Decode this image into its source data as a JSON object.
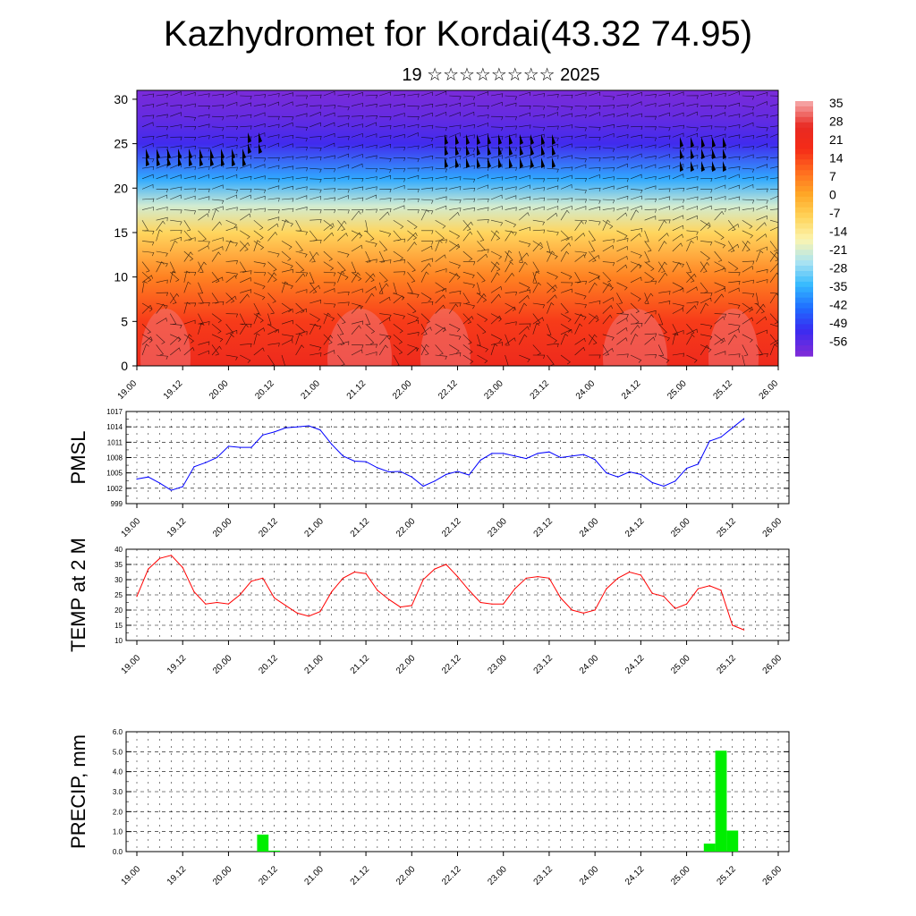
{
  "header": {
    "title": "Kazhydromet for Kordai(43.32 74.95)",
    "subtitle": "19 ☆☆☆☆☆☆☆☆ 2025"
  },
  "chart_data": [
    {
      "type": "heatmap",
      "name": "vertical-section",
      "title": "",
      "ylabel": "",
      "x_ticks": [
        "19.00",
        "19.12",
        "20.00",
        "20.12",
        "21.00",
        "21.12",
        "22.00",
        "22.12",
        "23.00",
        "23.12",
        "24.00",
        "24.12",
        "25.00",
        "25.12",
        "26.00"
      ],
      "y_ticks": [
        0,
        5,
        10,
        15,
        20,
        25,
        30
      ],
      "ylim": [
        0,
        31
      ],
      "colorbar": {
        "labels": [
          35,
          28,
          21,
          14,
          7,
          0,
          -7,
          -14,
          -21,
          -28,
          -35,
          -42,
          -49,
          -56
        ],
        "range": [
          -60,
          38
        ],
        "colors": [
          "#7b2bd9",
          "#3a2bf0",
          "#1f6dff",
          "#34b9ff",
          "#a9e3f2",
          "#fbf5b0",
          "#ffd45a",
          "#ffa726",
          "#ff6d1f",
          "#f52b17",
          "#e82a23",
          "#f5a0a0"
        ]
      },
      "temperature_profile": [
        {
          "h": 0,
          "t": 25
        },
        {
          "h": 5,
          "t": 18
        },
        {
          "h": 10,
          "t": 8
        },
        {
          "h": 15,
          "t": -7
        },
        {
          "h": 18,
          "t": -20
        },
        {
          "h": 21,
          "t": -35
        },
        {
          "h": 25,
          "t": -52
        },
        {
          "h": 28,
          "t": -57
        },
        {
          "h": 31,
          "t": -60
        }
      ]
    },
    {
      "type": "line",
      "name": "pmsl",
      "ylabel": "PMSL",
      "color": "#0000ff",
      "x_ticks": [
        "19.00",
        "19.12",
        "20.00",
        "20.12",
        "21.00",
        "21.12",
        "22.00",
        "22.12",
        "23.00",
        "23.12",
        "24.00",
        "24.12",
        "25.00",
        "25.12",
        "26.00"
      ],
      "y_ticks": [
        999,
        1002,
        1005,
        1008,
        1011,
        1014,
        1017
      ],
      "ylim": [
        999,
        1017
      ],
      "x_hours": [
        0,
        3,
        6,
        9,
        12,
        15,
        18,
        21,
        24,
        27,
        30,
        33,
        36,
        39,
        42,
        45,
        48,
        51,
        54,
        57,
        60,
        63,
        66,
        69,
        72,
        75,
        78,
        81,
        84,
        87,
        90,
        93,
        96,
        99,
        102,
        105,
        108,
        111,
        114,
        117,
        120,
        123,
        126,
        129,
        132,
        135,
        138,
        141,
        144,
        147,
        150,
        153,
        156,
        159
      ],
      "values": [
        1003.8,
        1004.2,
        1003.0,
        1001.6,
        1002.3,
        1006.2,
        1007.0,
        1008.0,
        1010.2,
        1010.0,
        1010.0,
        1012.4,
        1013.0,
        1013.8,
        1014.0,
        1014.2,
        1013.4,
        1010.6,
        1008.3,
        1007.3,
        1007.2,
        1006.0,
        1005.2,
        1005.3,
        1004.2,
        1002.4,
        1003.4,
        1004.7,
        1005.3,
        1004.6,
        1007.5,
        1008.8,
        1008.8,
        1008.3,
        1007.8,
        1008.8,
        1009.1,
        1008.0,
        1008.3,
        1008.6,
        1007.6,
        1005.0,
        1004.2,
        1005.2,
        1004.7,
        1003.1,
        1002.4,
        1003.4,
        1005.9,
        1006.7,
        1011.2,
        1012.0,
        1013.8,
        1015.6
      ]
    },
    {
      "type": "line",
      "name": "temp-2m",
      "ylabel": "TEMP at 2 M",
      "color": "#ff0000",
      "x_ticks": [
        "19.00",
        "19.12",
        "20.00",
        "20.12",
        "21.00",
        "21.12",
        "22.00",
        "22.12",
        "23.00",
        "23.12",
        "24.00",
        "24.12",
        "25.00",
        "25.12",
        "26.00"
      ],
      "y_ticks": [
        10,
        15,
        20,
        25,
        30,
        35,
        40
      ],
      "ylim": [
        10,
        40
      ],
      "x_hours": [
        0,
        3,
        6,
        9,
        12,
        15,
        18,
        21,
        24,
        27,
        30,
        33,
        36,
        39,
        42,
        45,
        48,
        51,
        54,
        57,
        60,
        63,
        66,
        69,
        72,
        75,
        78,
        81,
        84,
        87,
        90,
        93,
        96,
        99,
        102,
        105,
        108,
        111,
        114,
        117,
        120,
        123,
        126,
        129,
        132,
        135,
        138,
        141,
        144,
        147,
        150,
        153,
        156,
        159
      ],
      "values": [
        24.5,
        33.5,
        37.0,
        38.0,
        34.0,
        26.0,
        22.0,
        22.5,
        22.0,
        25.0,
        29.5,
        30.5,
        24.0,
        21.5,
        19.0,
        18.0,
        19.5,
        26.0,
        30.5,
        32.5,
        32.0,
        26.5,
        23.5,
        21.0,
        21.5,
        30.0,
        33.5,
        35.0,
        31.0,
        26.5,
        22.5,
        22.0,
        22.0,
        27.0,
        30.5,
        31.0,
        30.5,
        24.0,
        20.0,
        19.0,
        20.0,
        27.0,
        30.5,
        32.5,
        31.5,
        25.5,
        24.5,
        20.5,
        22.0,
        27.0,
        28.0,
        26.5,
        15.0,
        13.5
      ]
    },
    {
      "type": "bar",
      "name": "precip",
      "ylabel": "PRECIP, mm",
      "color": "#00ee00",
      "x_ticks": [
        "19.00",
        "19.12",
        "20.00",
        "20.12",
        "21.00",
        "21.12",
        "22.00",
        "22.12",
        "23.00",
        "23.12",
        "24.00",
        "24.12",
        "25.00",
        "25.12",
        "26.00"
      ],
      "y_ticks": [
        "0.0",
        "1.0",
        "2.0",
        "3.0",
        "4.0",
        "5.0",
        "6.0"
      ],
      "ylim": [
        0,
        6
      ],
      "bars": [
        {
          "hour": 33,
          "value": 0.85
        },
        {
          "hour": 36,
          "value": 0.05
        },
        {
          "hour": 150,
          "value": 0.4
        },
        {
          "hour": 153,
          "value": 5.05
        },
        {
          "hour": 156,
          "value": 1.05
        }
      ]
    }
  ]
}
